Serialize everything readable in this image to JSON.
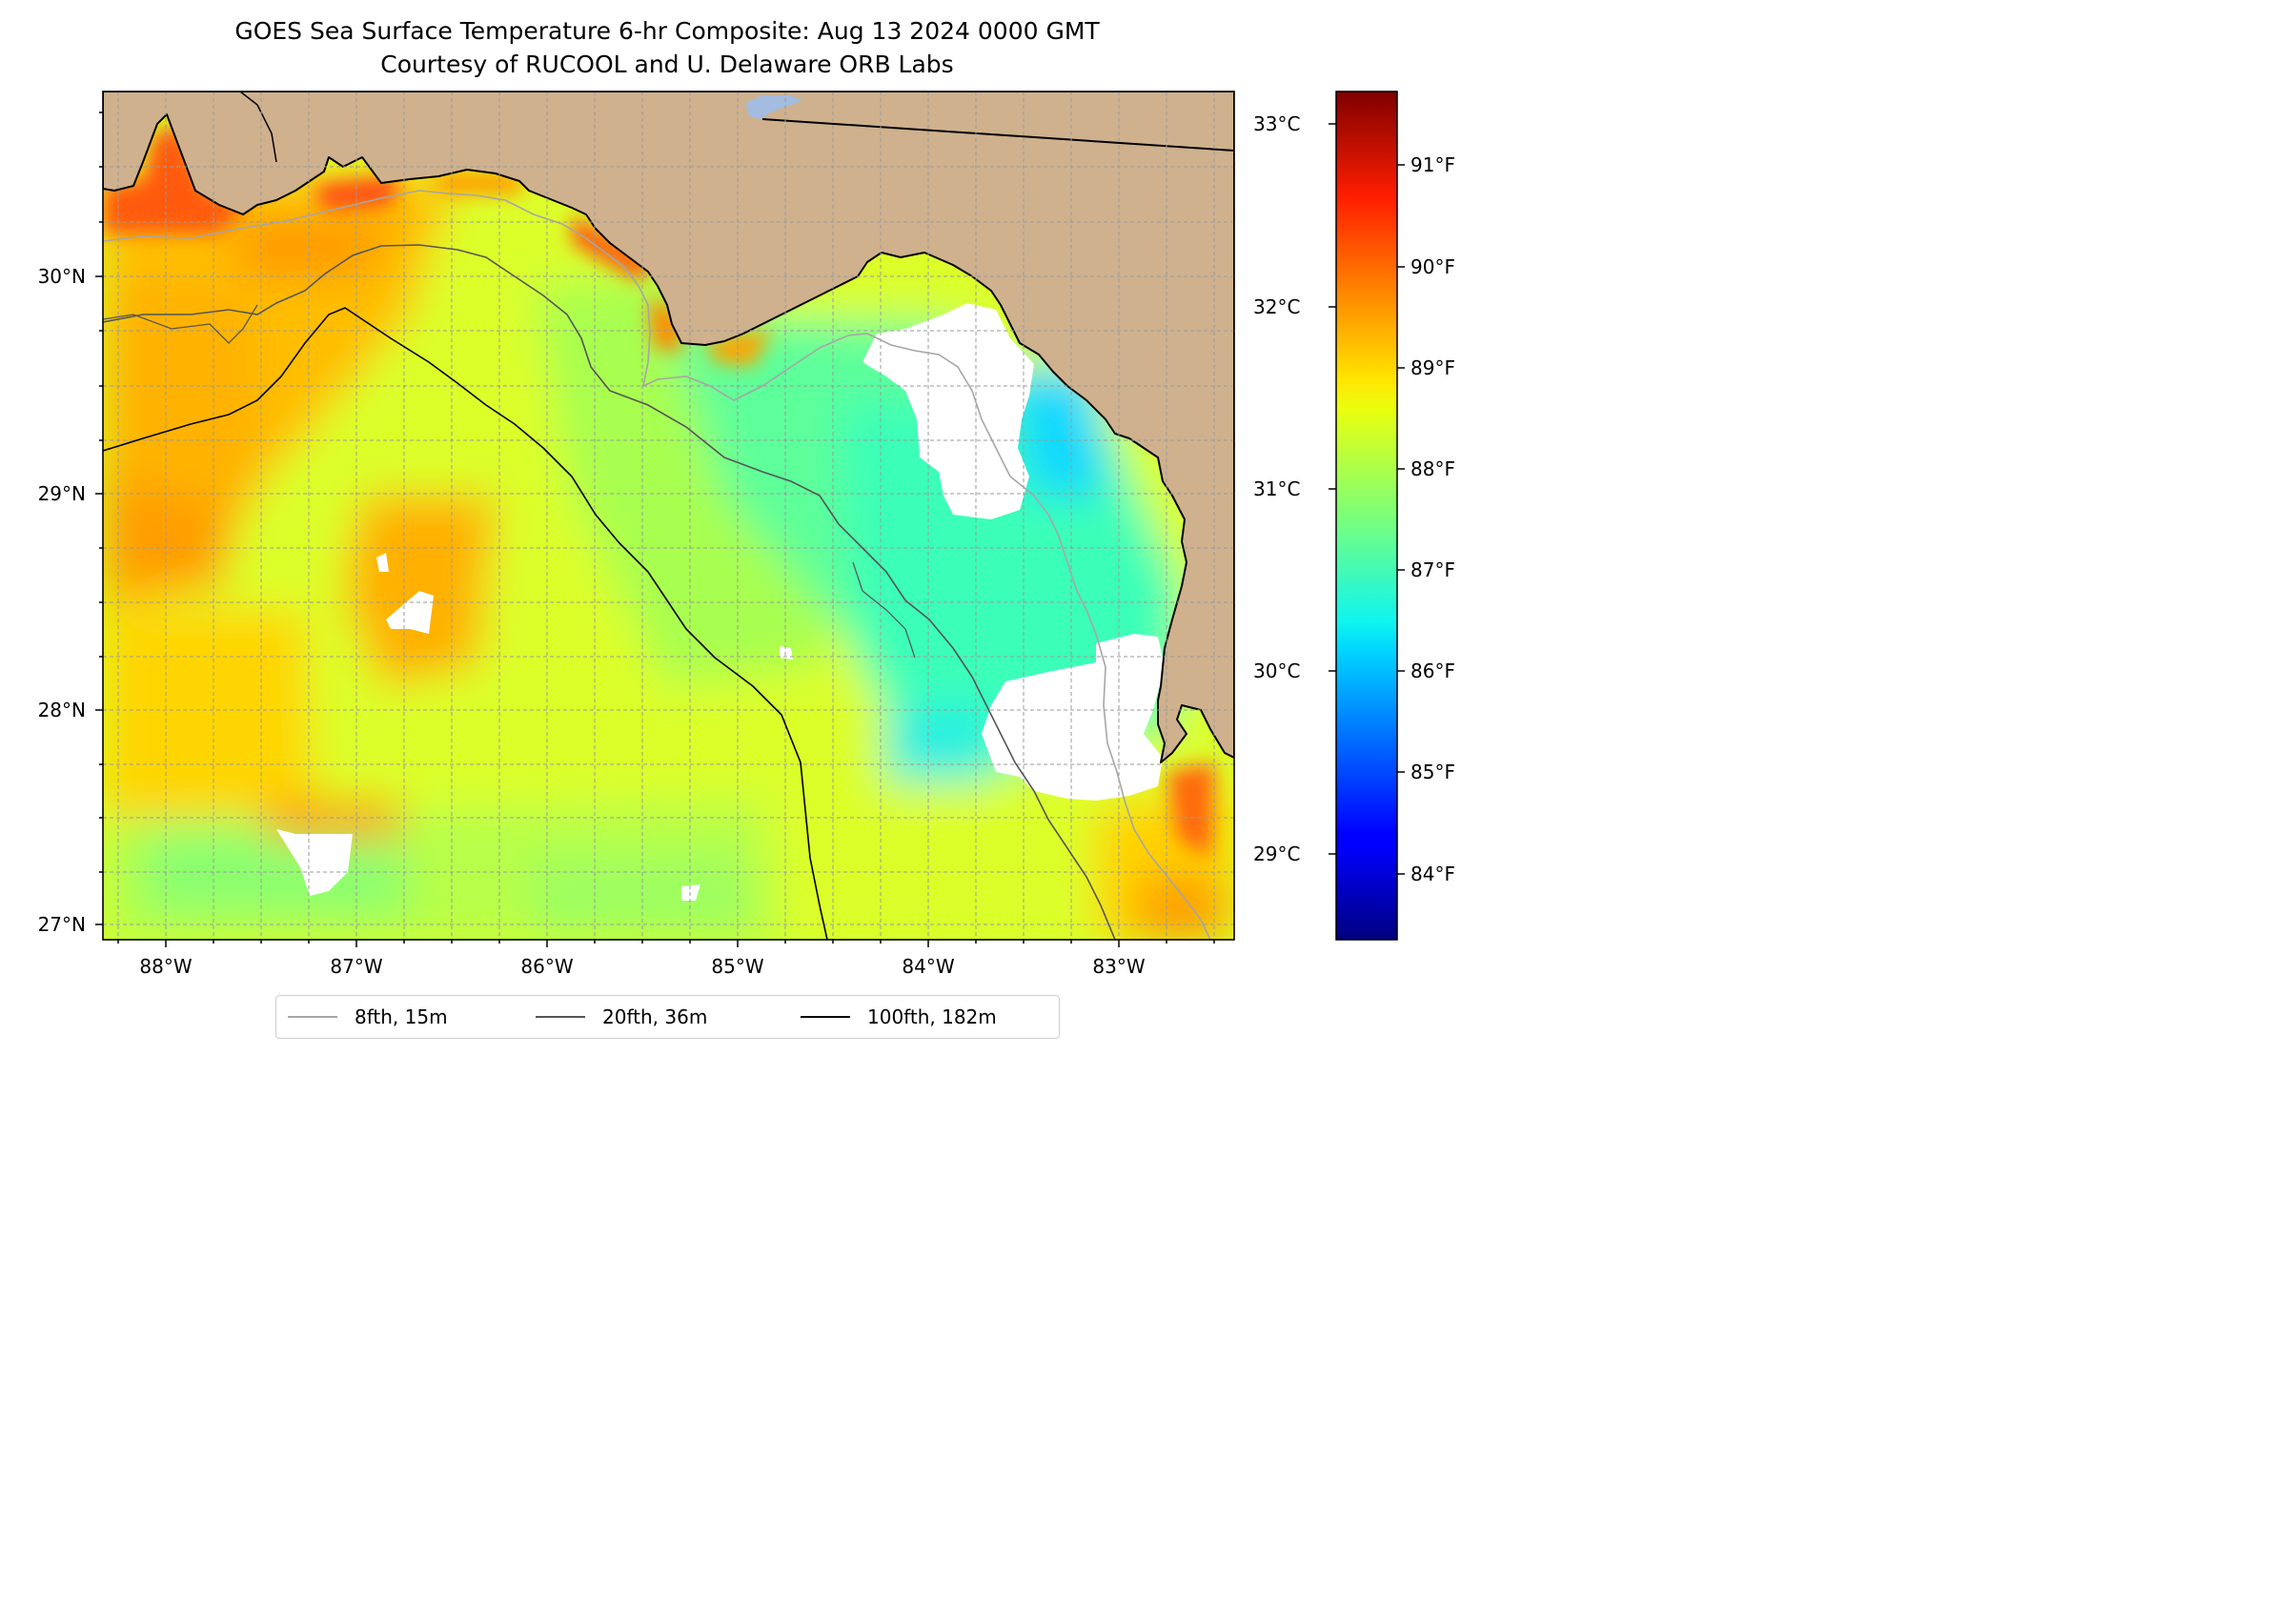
{
  "title": {
    "line1": "GOES Sea Surface Temperature 6-hr Composite: Aug 13 2024 0000 GMT",
    "line2": "Courtesy of RUCOOL and U. Delaware ORB Labs"
  },
  "map": {
    "lat_labels": [
      "30°N",
      "29°N",
      "28°N",
      "27°N"
    ],
    "lon_labels": [
      "88°W",
      "87°W",
      "86°W",
      "85°W",
      "84°W",
      "83°W"
    ],
    "colors": {
      "land": "#cfb18d",
      "coast": "#000000",
      "lake": "#a3bcdf",
      "gridline": "#9a9a9a",
      "no_data": "#ffffff"
    }
  },
  "colorbar": {
    "celsius_labels": [
      "33°C",
      "32°C",
      "31°C",
      "30°C",
      "29°C"
    ],
    "fahrenheit_labels": [
      "91°F",
      "90°F",
      "89°F",
      "88°F",
      "87°F",
      "86°F",
      "85°F",
      "84°F"
    ],
    "colormap": "jet"
  },
  "legend": {
    "items": [
      {
        "label": "8fth, 15m",
        "color": "#a6a6a6"
      },
      {
        "label": "20fth, 36m",
        "color": "#555555"
      },
      {
        "label": "100fth, 182m",
        "color": "#000000"
      }
    ]
  }
}
